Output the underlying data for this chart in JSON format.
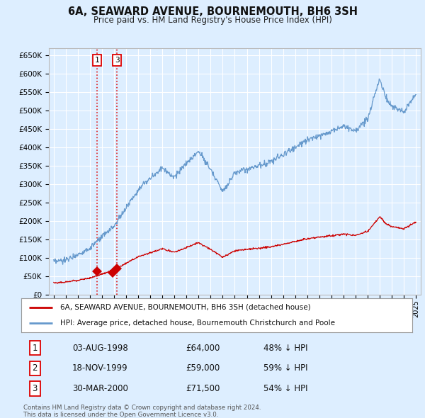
{
  "title": "6A, SEAWARD AVENUE, BOURNEMOUTH, BH6 3SH",
  "subtitle": "Price paid vs. HM Land Registry's House Price Index (HPI)",
  "background_color": "#ddeeff",
  "plot_bg_color": "#ddeeff",
  "grid_color": "#ffffff",
  "ylim": [
    0,
    670000
  ],
  "yticks": [
    0,
    50000,
    100000,
    150000,
    200000,
    250000,
    300000,
    350000,
    400000,
    450000,
    500000,
    550000,
    600000,
    650000
  ],
  "xlim_start": 1994.6,
  "xlim_end": 2025.4,
  "sale_dates": [
    1998.583,
    1999.878,
    2000.247
  ],
  "sale_prices": [
    64000,
    59000,
    71500
  ],
  "sale_labels": [
    "1",
    "2",
    "3"
  ],
  "sale_color": "#cc0000",
  "hpi_color": "#6699cc",
  "legend_sale_label": "6A, SEAWARD AVENUE, BOURNEMOUTH, BH6 3SH (detached house)",
  "legend_hpi_label": "HPI: Average price, detached house, Bournemouth Christchurch and Poole",
  "table_rows": [
    {
      "num": "1",
      "date": "03-AUG-1998",
      "price": "£64,000",
      "hpi": "48% ↓ HPI"
    },
    {
      "num": "2",
      "date": "18-NOV-1999",
      "price": "£59,000",
      "hpi": "59% ↓ HPI"
    },
    {
      "num": "3",
      "date": "30-MAR-2000",
      "price": "£71,500",
      "hpi": "54% ↓ HPI"
    }
  ],
  "footer": "Contains HM Land Registry data © Crown copyright and database right 2024.\nThis data is licensed under the Open Government Licence v3.0.",
  "dashed_line_color": "#dd0000",
  "marker_size": 7,
  "marker_style": "D"
}
